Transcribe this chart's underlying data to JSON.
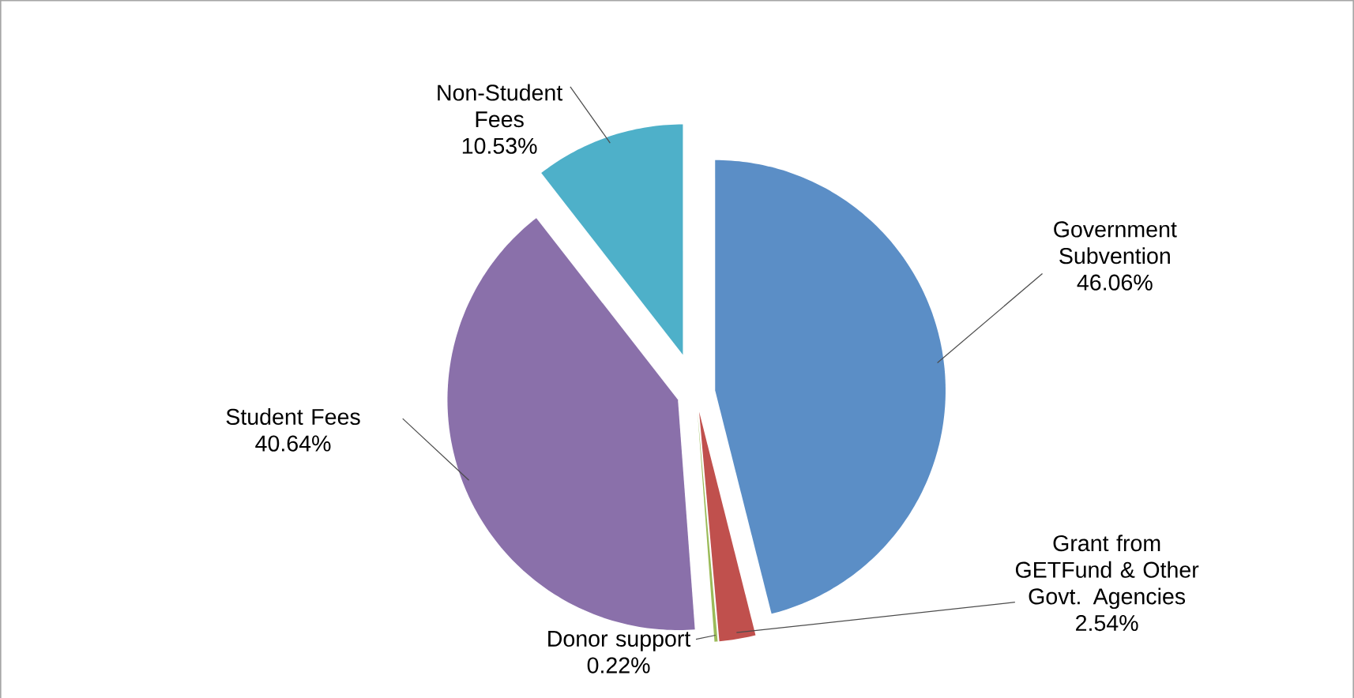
{
  "chart_data": {
    "type": "pie",
    "categories": [
      "Government Subvention",
      "Grant from GETFund & Other Govt. Agencies",
      "Donor support",
      "Student Fees",
      "Non-Student Fees"
    ],
    "values": [
      46.06,
      2.54,
      0.22,
      40.64,
      10.53
    ],
    "value_labels": [
      "46.06%",
      "2.54%",
      "0.22%",
      "40.64%",
      "10.53%"
    ],
    "colors": [
      "#5b8ec6",
      "#c0504d",
      "#9bbb59",
      "#8a70aa",
      "#4eb0c9"
    ]
  }
}
